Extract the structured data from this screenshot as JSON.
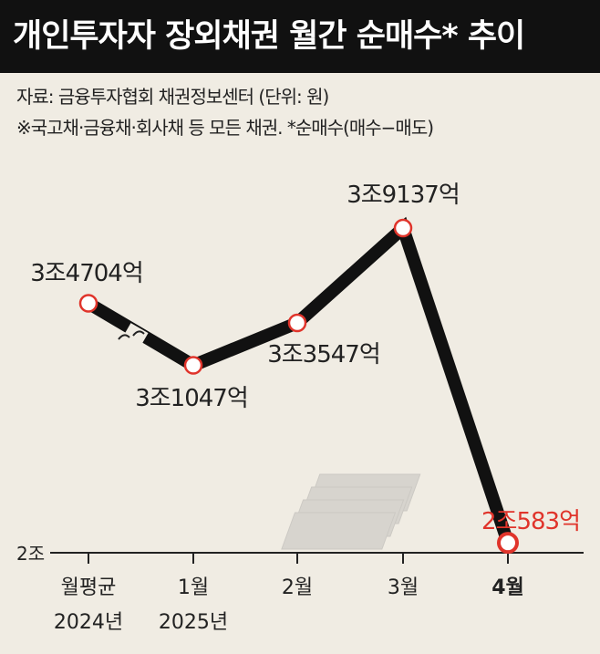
{
  "title": "개인투자자 장외채권 월간 순매수* 추이",
  "source": "자료: 금융투자협회 채권정보센터 (단위: 원)",
  "footnote": "※국고채·금융채·회사채 등 모든 채권. *순매수(매수−매도)",
  "chart_data": {
    "type": "line",
    "title": "개인투자자 장외채권 월간 순매수* 추이",
    "categories": [
      "월평균\n2024년",
      "1월\n2025년",
      "2월",
      "3월",
      "4월"
    ],
    "category_lines": [
      [
        "월평균",
        "2024년"
      ],
      [
        "1월",
        "2025년"
      ],
      [
        "2월",
        ""
      ],
      [
        "3월",
        ""
      ],
      [
        "4월",
        ""
      ]
    ],
    "values_억원": [
      34704,
      31047,
      33547,
      39137,
      20583
    ],
    "labels": [
      "3조4704억",
      "3조1047억",
      "3조3547억",
      "3조9137억",
      "2조583억"
    ],
    "y_axis_label": "2조",
    "ylim_억원": [
      20000,
      40000
    ],
    "highlight_color": "#e0342b",
    "line_color": "#111111",
    "axis_break": true
  }
}
